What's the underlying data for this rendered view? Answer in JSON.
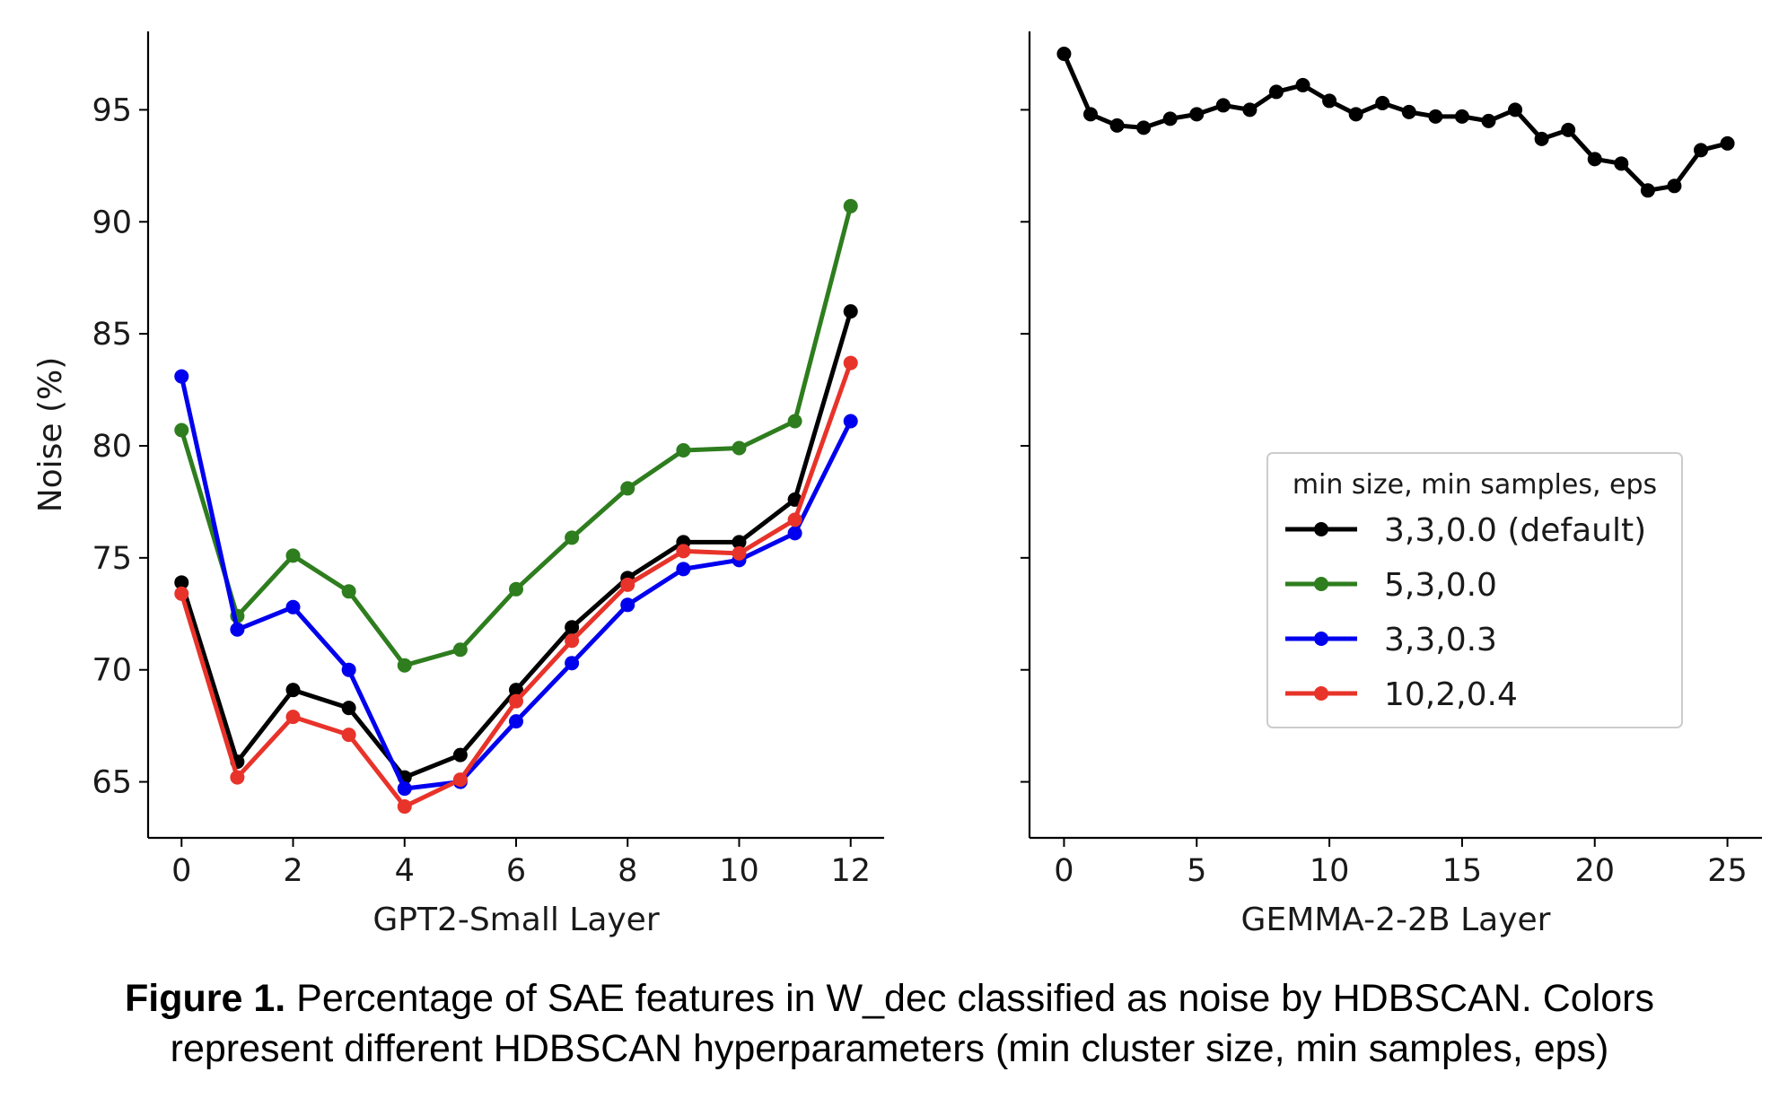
{
  "chart_data": [
    {
      "type": "line",
      "xlabel": "GPT2-Small Layer",
      "ylabel": "Noise (%)",
      "xlim": [
        -0.6,
        12.6
      ],
      "ylim": [
        62.5,
        98.5
      ],
      "xticks": [
        0,
        2,
        4,
        6,
        8,
        10,
        12
      ],
      "yticks": [
        65,
        70,
        75,
        80,
        85,
        90,
        95
      ],
      "x": [
        0,
        1,
        2,
        3,
        4,
        5,
        6,
        7,
        8,
        9,
        10,
        11,
        12
      ],
      "series": [
        {
          "name": "3,3,0.0 (default)",
          "color": "#000000",
          "values": [
            73.9,
            65.9,
            69.1,
            68.3,
            65.2,
            66.2,
            69.1,
            71.9,
            74.1,
            75.7,
            75.7,
            77.6,
            86.0
          ]
        },
        {
          "name": "5,3,0.0",
          "color": "#2e7d1e",
          "values": [
            80.7,
            72.4,
            75.1,
            73.5,
            70.2,
            70.9,
            73.6,
            75.9,
            78.1,
            79.8,
            79.9,
            81.1,
            90.7
          ]
        },
        {
          "name": "3,3,0.3",
          "color": "#0000ee",
          "values": [
            83.1,
            71.8,
            72.8,
            70.0,
            64.7,
            65.0,
            67.7,
            70.3,
            72.9,
            74.5,
            74.9,
            76.1,
            81.1
          ]
        },
        {
          "name": "10,2,0.4",
          "color": "#e8332a",
          "values": [
            73.4,
            65.2,
            67.9,
            67.1,
            63.9,
            65.1,
            68.6,
            71.3,
            73.8,
            75.3,
            75.2,
            76.7,
            83.7
          ]
        }
      ]
    },
    {
      "type": "line",
      "xlabel": "GEMMA-2-2B Layer",
      "ylabel": "",
      "xlim": [
        -1.3,
        26.3
      ],
      "ylim": [
        62.5,
        98.5
      ],
      "xticks": [
        0,
        5,
        10,
        15,
        20,
        25
      ],
      "x": [
        0,
        1,
        2,
        3,
        4,
        5,
        6,
        7,
        8,
        9,
        10,
        11,
        12,
        13,
        14,
        15,
        16,
        17,
        18,
        19,
        20,
        21,
        22,
        23,
        24,
        25
      ],
      "series": [
        {
          "name": "3,3,0.0 (default)",
          "color": "#000000",
          "values": [
            97.5,
            94.8,
            94.3,
            94.2,
            94.6,
            94.8,
            95.2,
            95.0,
            95.8,
            96.1,
            95.4,
            94.8,
            95.3,
            94.9,
            94.7,
            94.7,
            94.5,
            95.0,
            93.7,
            94.1,
            92.8,
            92.6,
            91.4,
            91.6,
            93.2,
            93.5
          ]
        }
      ],
      "legend": {
        "placement": "center-right",
        "title": "min size, min samples, eps",
        "entries": [
          {
            "label": "3,3,0.0 (default)",
            "color": "#000000"
          },
          {
            "label": "5,3,0.0",
            "color": "#2e7d1e"
          },
          {
            "label": "3,3,0.3",
            "color": "#0000ee"
          },
          {
            "label": "10,2,0.4",
            "color": "#e8332a"
          }
        ]
      }
    }
  ],
  "caption": {
    "label": "Figure 1.",
    "line1": " Percentage of SAE features in W_dec classified as noise by HDBSCAN. Colors",
    "line2": "represent different HDBSCAN hyperparameters (min cluster size, min samples, eps)"
  }
}
